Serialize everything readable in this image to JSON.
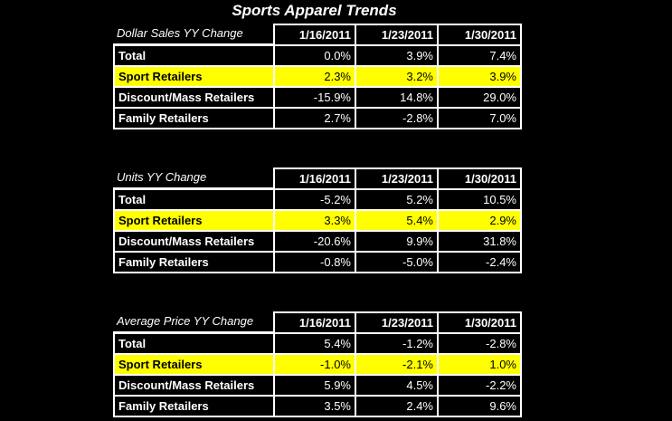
{
  "title": "Sports Apparel Trends",
  "tables": [
    {
      "caption": "Dollar Sales YY Change",
      "columns": [
        "1/16/2011",
        "1/23/2011",
        "1/30/2011"
      ],
      "rows": [
        {
          "label": "Total",
          "values": [
            "0.0%",
            "3.9%",
            "7.4%"
          ]
        },
        {
          "label": "Sport Retailers",
          "values": [
            "2.3%",
            "3.2%",
            "3.9%"
          ]
        },
        {
          "label": "Discount/Mass Retailers",
          "values": [
            "-15.9%",
            "14.8%",
            "29.0%"
          ]
        },
        {
          "label": "Family Retailers",
          "values": [
            "2.7%",
            "-2.8%",
            "7.0%"
          ]
        }
      ]
    },
    {
      "caption": "Units YY Change",
      "columns": [
        "1/16/2011",
        "1/23/2011",
        "1/30/2011"
      ],
      "rows": [
        {
          "label": "Total",
          "values": [
            "-5.2%",
            "5.2%",
            "10.5%"
          ]
        },
        {
          "label": "Sport Retailers",
          "values": [
            "3.3%",
            "5.4%",
            "2.9%"
          ]
        },
        {
          "label": "Discount/Mass Retailers",
          "values": [
            "-20.6%",
            "9.9%",
            "31.8%"
          ]
        },
        {
          "label": "Family Retailers",
          "values": [
            "-0.8%",
            "-5.0%",
            "-2.4%"
          ]
        }
      ]
    },
    {
      "caption": "Average Price YY Change",
      "columns": [
        "1/16/2011",
        "1/23/2011",
        "1/30/2011"
      ],
      "rows": [
        {
          "label": "Total",
          "values": [
            "5.4%",
            "-1.2%",
            "-2.8%"
          ]
        },
        {
          "label": "Sport Retailers",
          "values": [
            "-1.0%",
            "-2.1%",
            "1.0%"
          ]
        },
        {
          "label": "Discount/Mass Retailers",
          "values": [
            "5.9%",
            "4.5%",
            "-2.2%"
          ]
        },
        {
          "label": "Family Retailers",
          "values": [
            "3.5%",
            "2.4%",
            "9.6%"
          ]
        }
      ]
    }
  ]
}
